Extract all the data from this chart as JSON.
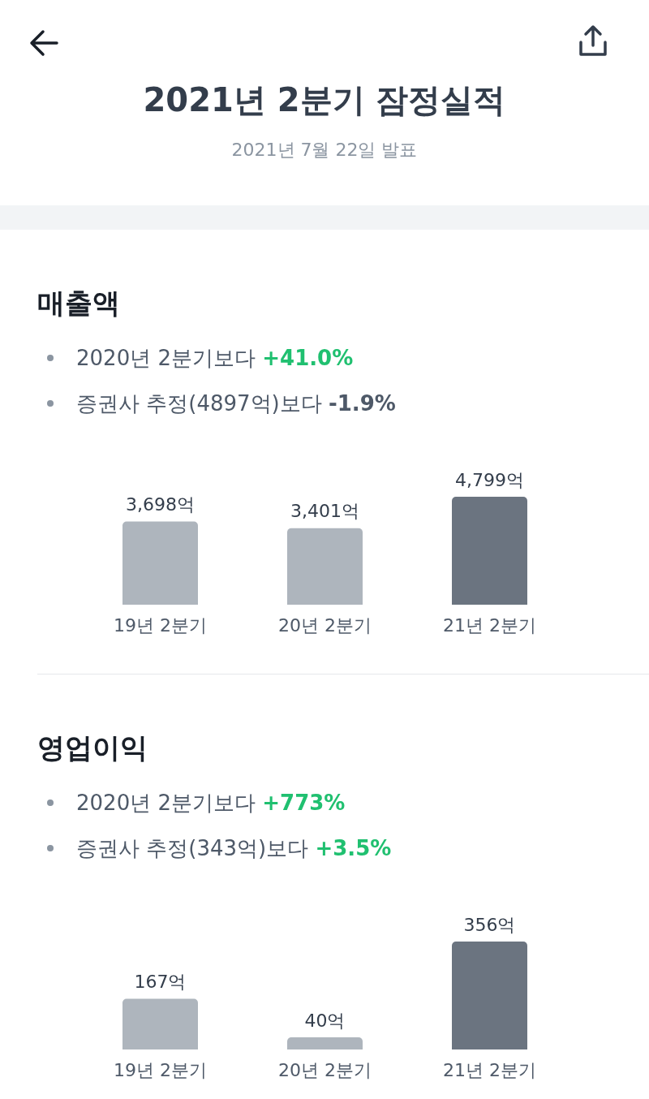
{
  "chart_data": [
    {
      "type": "other",
      "title": "2021년 2분기 잠정실적",
      "subtitle": "2021년 7월 22일 발표"
    },
    {
      "type": "bar",
      "title": "매출액",
      "annotations": [
        "2020년 2분기보다 +41.0%",
        "증권사 추정(4897억)보다 -1.9%"
      ],
      "categories": [
        "19년 2분기",
        "20년 2분기",
        "21년 2분기"
      ],
      "values": [
        3698,
        3401,
        4799
      ],
      "colors": [
        "#aeb5bd",
        "#aeb5bd",
        "#6b7480"
      ],
      "value_labels": [
        "3,698억",
        "3,401억",
        "4,799억"
      ]
    },
    {
      "type": "bar",
      "title": "영업이익",
      "annotations": [
        "2020년 2분기보다 +773%",
        "증권사 추정(343억)보다 +3.5%"
      ],
      "categories": [
        "19년 2분기",
        "20년 2분기",
        "21년 2분기"
      ],
      "values": [
        167,
        40,
        356
      ],
      "colors": [
        "#aeb5bd",
        "#aeb5bd",
        "#6b7480"
      ],
      "value_labels": [
        "167억",
        "40억",
        "356억"
      ]
    }
  ]
}
